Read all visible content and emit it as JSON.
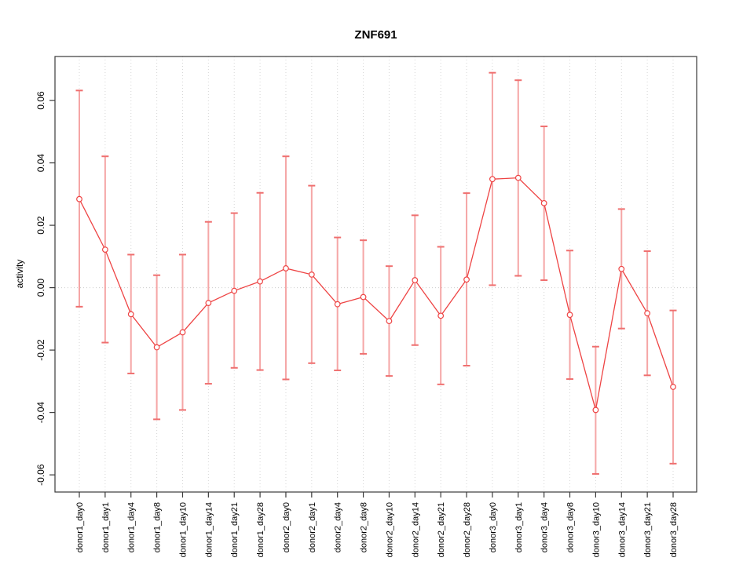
{
  "chart_data": {
    "type": "line",
    "title": "ZNF691",
    "xlabel": "",
    "ylabel": "activity",
    "legend": "none",
    "categories": [
      "donor1_day0",
      "donor1_day1",
      "donor1_day4",
      "donor1_day8",
      "donor1_day10",
      "donor1_day14",
      "donor1_day21",
      "donor1_day28",
      "donor2_day0",
      "donor2_day1",
      "donor2_day4",
      "donor2_day8",
      "donor2_day10",
      "donor2_day14",
      "donor2_day21",
      "donor2_day28",
      "donor3_day0",
      "donor3_day1",
      "donor3_day4",
      "donor3_day8",
      "donor3_day10",
      "donor3_day14",
      "donor3_day21",
      "donor3_day28"
    ],
    "series": [
      {
        "name": "activity",
        "values": [
          0.0284,
          0.0122,
          -0.0085,
          -0.0191,
          -0.0143,
          -0.0049,
          -0.001,
          0.002,
          0.0062,
          0.0042,
          -0.0053,
          -0.003,
          -0.0107,
          0.0024,
          -0.009,
          0.0026,
          0.0348,
          0.0352,
          0.0271,
          -0.0087,
          -0.0392,
          0.006,
          -0.0082,
          -0.0318
        ],
        "lower": [
          -0.0061,
          -0.0176,
          -0.0275,
          -0.0422,
          -0.0392,
          -0.0308,
          -0.0257,
          -0.0264,
          -0.0294,
          -0.0242,
          -0.0265,
          -0.0212,
          -0.0283,
          -0.0184,
          -0.031,
          -0.025,
          0.0008,
          0.0038,
          0.0024,
          -0.0293,
          -0.0597,
          -0.0131,
          -0.0281,
          -0.0564
        ],
        "upper": [
          0.0632,
          0.0421,
          0.0106,
          0.004,
          0.0106,
          0.0211,
          0.0239,
          0.0304,
          0.0421,
          0.0327,
          0.0161,
          0.0152,
          0.0069,
          0.0232,
          0.0131,
          0.0303,
          0.0689,
          0.0665,
          0.0517,
          0.0119,
          -0.0189,
          0.0252,
          0.0117,
          -0.0073
        ]
      }
    ],
    "ylim": [
      -0.0655,
      0.0741
    ],
    "yticks": [
      0.06,
      0.04,
      0.02,
      0,
      -0.02,
      -0.04,
      -0.06
    ],
    "ytick_labels": [
      "0.06",
      "0.04",
      "0.02",
      "0.00",
      "-0.02",
      "-0.04",
      "-0.06"
    ],
    "grid": {
      "vertical": "dotted line at every category",
      "zero_line": "dotted line at y=0"
    },
    "colors": {
      "line": "#EE4444",
      "point": "#EE4444",
      "point_fill": "#FFFFFF",
      "error_bar": "#F5A6A6",
      "error_cap": "#EF6F6F",
      "grid": "#D6D6D6",
      "zero_line": "#CBCBCB",
      "axis": "#3A3A3A",
      "text": "#000000"
    }
  }
}
